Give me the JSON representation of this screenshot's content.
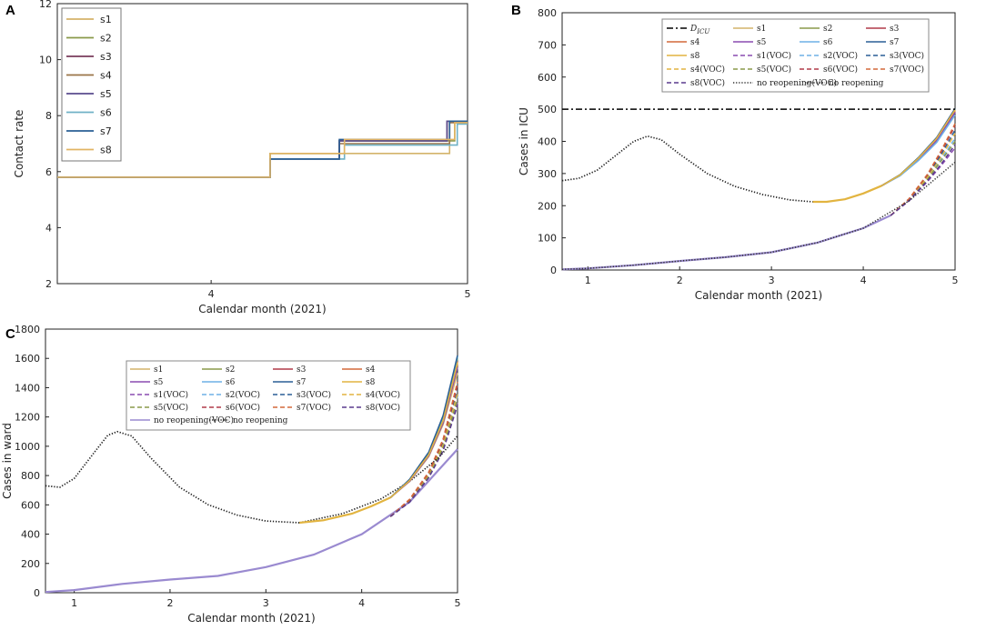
{
  "chart_data": [
    {
      "panel": "A",
      "type": "line",
      "title": "",
      "xlabel": "Calendar month (2021)",
      "ylabel": "Contact rate",
      "xlim": [
        3.4,
        5.0
      ],
      "ylim": [
        2,
        12
      ],
      "xticks": [
        4,
        5
      ],
      "yticks": [
        2,
        4,
        6,
        8,
        10,
        12
      ],
      "legend_position": "top-left",
      "series": [
        {
          "name": "s1",
          "color": "#d4b36a",
          "steps": [
            [
              3.4,
              5.8
            ],
            [
              4.23,
              6.65
            ],
            [
              4.93,
              7.8
            ],
            [
              5.0,
              7.8
            ]
          ]
        },
        {
          "name": "s2",
          "color": "#8a9a4a",
          "steps": [
            [
              3.4,
              5.8
            ],
            [
              4.23,
              6.65
            ],
            [
              4.5,
              7.1
            ],
            [
              4.95,
              7.75
            ],
            [
              5.0,
              7.75
            ]
          ]
        },
        {
          "name": "s3",
          "color": "#7a3b5c",
          "steps": [
            [
              3.4,
              5.8
            ],
            [
              4.23,
              6.45
            ],
            [
              4.5,
              7.1
            ],
            [
              4.92,
              7.8
            ],
            [
              5.0,
              7.8
            ]
          ]
        },
        {
          "name": "s4",
          "color": "#9a7448",
          "steps": [
            [
              3.4,
              5.8
            ],
            [
              4.23,
              6.45
            ],
            [
              4.5,
              7.0
            ],
            [
              4.93,
              7.75
            ],
            [
              5.0,
              7.75
            ]
          ]
        },
        {
          "name": "s5",
          "color": "#5a4c8e",
          "steps": [
            [
              3.4,
              5.8
            ],
            [
              4.23,
              6.45
            ],
            [
              4.5,
              7.1
            ],
            [
              4.92,
              7.8
            ],
            [
              5.0,
              7.8
            ]
          ]
        },
        {
          "name": "s6",
          "color": "#6fb1c6",
          "steps": [
            [
              3.4,
              5.8
            ],
            [
              4.23,
              6.45
            ],
            [
              4.52,
              6.95
            ],
            [
              4.96,
              7.7
            ],
            [
              5.0,
              7.7
            ]
          ]
        },
        {
          "name": "s7",
          "color": "#2a5f95",
          "steps": [
            [
              3.4,
              5.8
            ],
            [
              4.23,
              6.45
            ],
            [
              4.5,
              7.15
            ],
            [
              4.93,
              7.8
            ],
            [
              5.0,
              7.8
            ]
          ]
        },
        {
          "name": "s8",
          "color": "#e2b464",
          "steps": [
            [
              3.4,
              5.8
            ],
            [
              4.23,
              6.65
            ],
            [
              4.52,
              7.15
            ],
            [
              4.95,
              7.75
            ],
            [
              5.0,
              7.75
            ]
          ]
        }
      ]
    },
    {
      "panel": "B",
      "type": "line",
      "title": "",
      "xlabel": "Calendar month (2021)",
      "ylabel": "Cases in ICU",
      "xlim": [
        0.72,
        5.0
      ],
      "ylim": [
        0,
        800
      ],
      "xticks": [
        1,
        2,
        3,
        4,
        5
      ],
      "yticks": [
        0,
        100,
        200,
        300,
        400,
        500,
        600,
        700,
        800
      ],
      "legend_position": "top",
      "capacity_line": {
        "name": "D_ICU",
        "value": 500
      },
      "legend_order": [
        "D_ICU",
        "s1",
        "s2",
        "s3",
        "s4",
        "s5",
        "s6",
        "s7",
        "s8",
        "s1(VOC)",
        "s2(VOC)",
        "s3(VOC)",
        "s4(VOC)",
        "s5(VOC)",
        "s6(VOC)",
        "s7(VOC)",
        "s8(VOC)",
        "no reopening(VOC)",
        "no reopening"
      ],
      "no_reopening": {
        "x": [
          0.72,
          0.9,
          1.1,
          1.3,
          1.5,
          1.65,
          1.8,
          2.0,
          2.3,
          2.6,
          2.9,
          3.2,
          3.45
        ],
        "y": [
          278,
          285,
          310,
          355,
          400,
          416,
          405,
          360,
          300,
          260,
          235,
          218,
          212
        ]
      },
      "no_reopening_voc": {
        "x": [
          0.72,
          1.0,
          1.5,
          2.0,
          2.5,
          3.0,
          3.5,
          4.0,
          4.5,
          5.0
        ],
        "y": [
          2,
          5,
          15,
          28,
          40,
          55,
          85,
          130,
          215,
          335
        ]
      },
      "reopening_common": {
        "x": [
          3.45,
          3.6,
          3.8,
          4.0,
          4.2
        ],
        "y": [
          212,
          212,
          220,
          238,
          262
        ]
      },
      "reopening_tails": [
        {
          "name": "s1",
          "color": "#d4b36a",
          "x": [
            4.2,
            4.4,
            4.6,
            4.8,
            5.0
          ],
          "y": [
            262,
            295,
            345,
            405,
            495
          ]
        },
        {
          "name": "s2",
          "color": "#8a9a4a",
          "x": [
            4.2,
            4.4,
            4.6,
            4.8,
            5.0
          ],
          "y": [
            262,
            296,
            348,
            410,
            500
          ]
        },
        {
          "name": "s3",
          "color": "#b03a48",
          "x": [
            4.2,
            4.4,
            4.6,
            4.8,
            5.0
          ],
          "y": [
            262,
            294,
            344,
            404,
            492
          ]
        },
        {
          "name": "s4",
          "color": "#d4683a",
          "x": [
            4.2,
            4.4,
            4.6,
            4.8,
            5.0
          ],
          "y": [
            262,
            295,
            346,
            407,
            497
          ]
        },
        {
          "name": "s5",
          "color": "#8a4bb0",
          "x": [
            4.2,
            4.4,
            4.6,
            4.8,
            5.0
          ],
          "y": [
            262,
            294,
            343,
            402,
            490
          ]
        },
        {
          "name": "s6",
          "color": "#6fb1e6",
          "x": [
            4.2,
            4.4,
            4.6,
            4.8,
            5.0
          ],
          "y": [
            262,
            293,
            340,
            397,
            482
          ]
        },
        {
          "name": "s7",
          "color": "#2a5f95",
          "x": [
            4.2,
            4.4,
            4.6,
            4.8,
            5.0
          ],
          "y": [
            262,
            296,
            349,
            412,
            502
          ]
        },
        {
          "name": "s8",
          "color": "#e2b440",
          "x": [
            4.2,
            4.4,
            4.6,
            4.8,
            5.0
          ],
          "y": [
            262,
            295,
            347,
            409,
            498
          ]
        }
      ],
      "voc_common": {
        "x": [
          0.72,
          1.0,
          1.5,
          2.0,
          2.5,
          3.0,
          3.5,
          4.0,
          4.3
        ],
        "y": [
          2,
          5,
          15,
          28,
          40,
          55,
          85,
          130,
          170
        ]
      },
      "voc_tails": [
        {
          "name": "s1(VOC)",
          "color": "#8a4bb0",
          "x": [
            4.3,
            4.5,
            4.7,
            4.85,
            5.0
          ],
          "y": [
            170,
            215,
            275,
            325,
            380
          ]
        },
        {
          "name": "s2(VOC)",
          "color": "#6fb1e6",
          "x": [
            4.3,
            4.5,
            4.7,
            4.85,
            5.0
          ],
          "y": [
            170,
            218,
            285,
            345,
            410
          ]
        },
        {
          "name": "s3(VOC)",
          "color": "#2a5f95",
          "x": [
            4.3,
            4.5,
            4.7,
            4.85,
            5.0
          ],
          "y": [
            170,
            220,
            292,
            360,
            435
          ]
        },
        {
          "name": "s4(VOC)",
          "color": "#e2b440",
          "x": [
            4.3,
            4.5,
            4.7,
            4.85,
            5.0
          ],
          "y": [
            170,
            219,
            288,
            352,
            425
          ]
        },
        {
          "name": "s5(VOC)",
          "color": "#8a9a4a",
          "x": [
            4.3,
            4.5,
            4.7,
            4.85,
            5.0
          ],
          "y": [
            170,
            217,
            282,
            340,
            400
          ]
        },
        {
          "name": "s6(VOC)",
          "color": "#b03a48",
          "x": [
            4.3,
            4.5,
            4.7,
            4.85,
            5.0
          ],
          "y": [
            170,
            221,
            296,
            368,
            448
          ]
        },
        {
          "name": "s7(VOC)",
          "color": "#d4683a",
          "x": [
            4.3,
            4.5,
            4.7,
            4.85,
            5.0
          ],
          "y": [
            170,
            222,
            298,
            372,
            455
          ]
        },
        {
          "name": "s8(VOC)",
          "color": "#5a3a8e",
          "x": [
            4.3,
            4.5,
            4.7,
            4.85,
            5.0
          ],
          "y": [
            170,
            216,
            278,
            330,
            390
          ]
        }
      ]
    },
    {
      "panel": "C",
      "type": "line",
      "title": "",
      "xlabel": "Calendar month (2021)",
      "ylabel": "Cases in ward",
      "xlim": [
        0.7,
        5.0
      ],
      "ylim": [
        0,
        1800
      ],
      "xticks": [
        1,
        2,
        3,
        4,
        5
      ],
      "yticks": [
        0,
        200,
        400,
        600,
        800,
        1000,
        1200,
        1400,
        1600,
        1800
      ],
      "legend_position": "top",
      "legend_order": [
        "s1",
        "s2",
        "s3",
        "s4",
        "s5",
        "s6",
        "s7",
        "s8",
        "s1(VOC)",
        "s2(VOC)",
        "s3(VOC)",
        "s4(VOC)",
        "s5(VOC)",
        "s6(VOC)",
        "s7(VOC)",
        "s8(VOC)",
        "no reopening(VOC)",
        "no reopening"
      ],
      "no_reopening": {
        "x": [
          0.7,
          0.85,
          1.0,
          1.2,
          1.35,
          1.45,
          1.6,
          1.8,
          2.1,
          2.4,
          2.7,
          3.0,
          3.35
        ],
        "y": [
          730,
          720,
          780,
          950,
          1075,
          1100,
          1070,
          920,
          720,
          600,
          530,
          490,
          478
        ]
      },
      "no_reopening_tail": {
        "x": [
          3.35,
          3.8,
          4.2,
          4.5,
          4.8,
          5.0
        ],
        "y": [
          478,
          540,
          640,
          760,
          920,
          1070
        ]
      },
      "no_reopening_voc": {
        "x": [
          0.7,
          1.0,
          1.5,
          2.0,
          2.5,
          3.0,
          3.5,
          4.0,
          4.5,
          5.0
        ],
        "y": [
          5,
          18,
          60,
          90,
          115,
          175,
          260,
          400,
          620,
          980
        ]
      },
      "reopening_common": {
        "x": [
          3.35,
          3.6,
          3.9,
          4.1,
          4.3
        ],
        "y": [
          478,
          495,
          540,
          590,
          650
        ]
      },
      "reopening_tails": [
        {
          "name": "s1",
          "color": "#d4b36a",
          "x": [
            4.3,
            4.5,
            4.7,
            4.85,
            5.0
          ],
          "y": [
            650,
            760,
            930,
            1150,
            1500
          ]
        },
        {
          "name": "s2",
          "color": "#8a9a4a",
          "x": [
            4.3,
            4.5,
            4.7,
            4.85,
            5.0
          ],
          "y": [
            650,
            770,
            950,
            1190,
            1600
          ]
        },
        {
          "name": "s3",
          "color": "#b03a48",
          "x": [
            4.3,
            4.5,
            4.7,
            4.85,
            5.0
          ],
          "y": [
            650,
            765,
            940,
            1170,
            1560
          ]
        },
        {
          "name": "s4",
          "color": "#d4683a",
          "x": [
            4.3,
            4.5,
            4.7,
            4.85,
            5.0
          ],
          "y": [
            650,
            768,
            945,
            1180,
            1580
          ]
        },
        {
          "name": "s5",
          "color": "#8a4bb0",
          "x": [
            4.3,
            4.5,
            4.7,
            4.85,
            5.0
          ],
          "y": [
            650,
            762,
            935,
            1160,
            1540
          ]
        },
        {
          "name": "s6",
          "color": "#6fd1d6",
          "x": [
            4.3,
            4.5,
            4.7,
            4.85,
            5.0
          ],
          "y": [
            650,
            772,
            955,
            1200,
            1610
          ]
        },
        {
          "name": "s7",
          "color": "#2a5f95",
          "x": [
            4.3,
            4.5,
            4.7,
            4.85,
            5.0
          ],
          "y": [
            650,
            774,
            960,
            1210,
            1620
          ]
        },
        {
          "name": "s8",
          "color": "#e2b440",
          "x": [
            4.3,
            4.5,
            4.7,
            4.85,
            5.0
          ],
          "y": [
            650,
            766,
            942,
            1175,
            1570
          ]
        }
      ],
      "voc_tails": [
        {
          "name": "s1(VOC)",
          "color": "#8a4bb0",
          "x": [
            4.3,
            4.5,
            4.7,
            4.85,
            5.0
          ],
          "y": [
            520,
            620,
            790,
            980,
            1300
          ]
        },
        {
          "name": "s2(VOC)",
          "color": "#6fb1e6",
          "x": [
            4.3,
            4.5,
            4.7,
            4.85,
            5.0
          ],
          "y": [
            520,
            625,
            800,
            1000,
            1340
          ]
        },
        {
          "name": "s3(VOC)",
          "color": "#2a5f95",
          "x": [
            4.3,
            4.5,
            4.7,
            4.85,
            5.0
          ],
          "y": [
            520,
            630,
            810,
            1020,
            1380
          ]
        },
        {
          "name": "s4(VOC)",
          "color": "#e2b440",
          "x": [
            4.3,
            4.5,
            4.7,
            4.85,
            5.0
          ],
          "y": [
            520,
            628,
            805,
            1010,
            1360
          ]
        },
        {
          "name": "s5(VOC)",
          "color": "#8a9a4a",
          "x": [
            4.3,
            4.5,
            4.7,
            4.85,
            5.0
          ],
          "y": [
            520,
            622,
            795,
            990,
            1320
          ]
        },
        {
          "name": "s6(VOC)",
          "color": "#b03a48",
          "x": [
            4.3,
            4.5,
            4.7,
            4.85,
            5.0
          ],
          "y": [
            520,
            635,
            820,
            1040,
            1420
          ]
        },
        {
          "name": "s7(VOC)",
          "color": "#d4683a",
          "x": [
            4.3,
            4.5,
            4.7,
            4.85,
            5.0
          ],
          "y": [
            520,
            638,
            825,
            1050,
            1440
          ]
        },
        {
          "name": "s8(VOC)",
          "color": "#5a3a8e",
          "x": [
            4.3,
            4.5,
            4.7,
            4.85,
            5.0
          ],
          "y": [
            520,
            618,
            785,
            970,
            1280
          ]
        }
      ]
    }
  ],
  "legend_labels": {
    "d_icu": "D",
    "d_icu_sub": "ICU",
    "no_reopening": "no reopening",
    "no_reopening_voc": "no reopening(VOC)"
  },
  "colors": {
    "s1": "#d4b36a",
    "s2": "#8a9a4a",
    "s3": "#b03a48",
    "s4": "#d4683a",
    "s5": "#8a4bb0",
    "s6": "#6fb1e6",
    "s7": "#2a5f95",
    "s8": "#e2b440",
    "no_reopening": "#222222",
    "no_reopening_voc": "#9a8ad0",
    "capacity": "#000000"
  }
}
